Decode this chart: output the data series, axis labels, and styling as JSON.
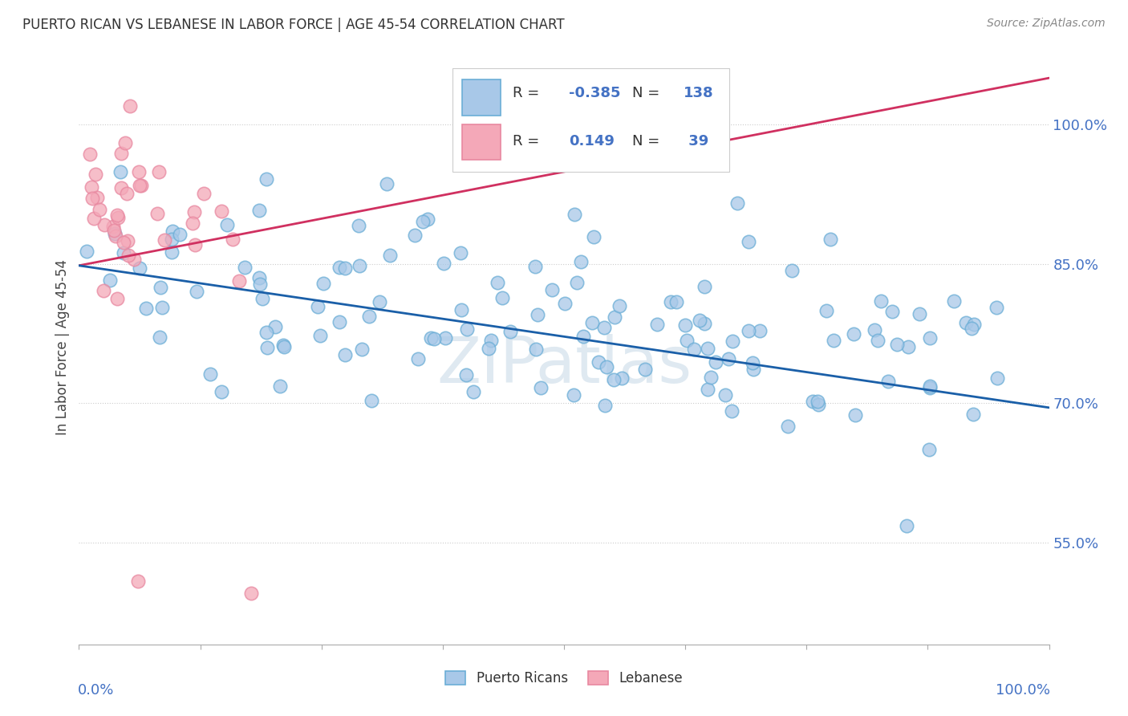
{
  "title": "PUERTO RICAN VS LEBANESE IN LABOR FORCE | AGE 45-54 CORRELATION CHART",
  "source": "Source: ZipAtlas.com",
  "ylabel": "In Labor Force | Age 45-54",
  "ytick_values": [
    0.55,
    0.7,
    0.85,
    1.0
  ],
  "blue_color": "#a8c8e8",
  "pink_color": "#f4a8b8",
  "blue_edge_color": "#6baed6",
  "pink_edge_color": "#e888a0",
  "blue_line_color": "#1a5fa8",
  "pink_line_color": "#d03060",
  "background_color": "#ffffff",
  "watermark": "ZIPatlas",
  "R_blue": -0.385,
  "N_blue": 138,
  "R_pink": 0.149,
  "N_pink": 39,
  "blue_line_y0": 0.848,
  "blue_line_y1": 0.695,
  "pink_line_y0": 0.848,
  "pink_line_y1": 1.05,
  "xlim": [
    0.0,
    1.0
  ],
  "ylim": [
    0.44,
    1.08
  ],
  "legend_R_color": "#4472c4",
  "legend_N_color": "#4472c4",
  "right_axis_color": "#4472c4"
}
